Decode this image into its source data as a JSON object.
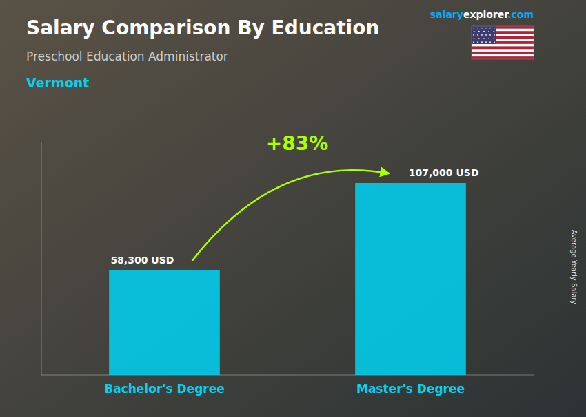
{
  "chart_data": {
    "type": "bar",
    "title": "Salary Comparison By Education",
    "subtitle": "Preschool Education Administrator",
    "location": "Vermont",
    "categories": [
      "Bachelor's Degree",
      "Master's Degree"
    ],
    "values": [
      58300,
      107000
    ],
    "value_labels": [
      "58,300 USD",
      "107,000 USD"
    ],
    "data_labels": true,
    "color": "#00d4f5",
    "annotation": "+83%",
    "y_label": "Average Yearly Salary",
    "source": [
      "salary",
      "explorer",
      ".com"
    ],
    "ylim": [
      0,
      130000
    ],
    "tick_labels": "x",
    "grid": false
  }
}
